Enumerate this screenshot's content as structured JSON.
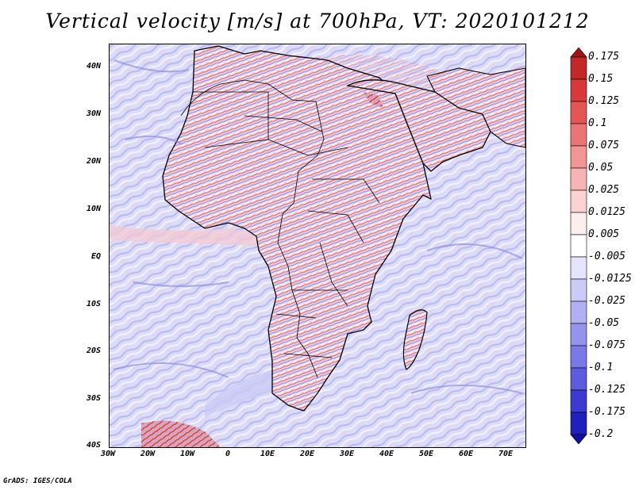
{
  "title": "Vertical velocity [m/s] at 700hPa, VT: 2020101212",
  "credit": "GrADS: IGES/COLA",
  "lat_ticks": [
    "40N",
    "30N",
    "20N",
    "10N",
    "EQ",
    "10S",
    "20S",
    "30S",
    "40S"
  ],
  "lon_ticks": [
    "30W",
    "20W",
    "10W",
    "0",
    "10E",
    "20E",
    "30E",
    "40E",
    "50E",
    "60E",
    "70E"
  ],
  "colorbar": {
    "labels": [
      "0.175",
      "0.15",
      "0.125",
      "0.1",
      "0.075",
      "0.05",
      "0.025",
      "0.0125",
      "0.005",
      "-0.005",
      "-0.0125",
      "-0.025",
      "-0.05",
      "-0.075",
      "-0.1",
      "-0.125",
      "-0.175",
      "-0.2"
    ],
    "colors": [
      "#a31515",
      "#c22828",
      "#d63a3a",
      "#e25656",
      "#ea7575",
      "#f19595",
      "#f6b4b4",
      "#fad2d2",
      "#fdeeee",
      "#ffffff",
      "#e4e4fc",
      "#cbcbf8",
      "#b0b0f3",
      "#9494ee",
      "#7a7ae6",
      "#5c5cdc",
      "#3b3bcf",
      "#2020bb",
      "#12129e"
    ]
  },
  "palette": {
    "ocean": "#dedffa",
    "land": "#f1d9e4",
    "border": "#000000"
  }
}
